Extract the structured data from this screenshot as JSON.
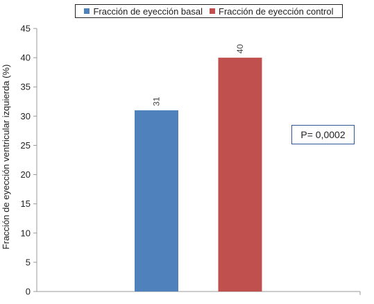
{
  "chart_data": {
    "type": "bar",
    "categories": [
      "Fracción de eyección basal",
      "Fracción de eyección control"
    ],
    "values": [
      31,
      40
    ],
    "data_labels": [
      "31",
      "40"
    ],
    "colors": [
      "#4f81bd",
      "#c0504d"
    ],
    "ylabel": "Fracción de eyección ventricular izquierda (%)",
    "ylim": [
      0,
      45
    ],
    "yticks": [
      0,
      5,
      10,
      15,
      20,
      25,
      30,
      35,
      40,
      45
    ],
    "ytick_labels": [
      "0",
      "5",
      "10",
      "15",
      "20",
      "25",
      "30",
      "35",
      "40",
      "45"
    ],
    "legend_position": "top",
    "grid": false
  },
  "legend": {
    "items": [
      {
        "label": "Fracción de eyección basal",
        "color": "#4f81bd"
      },
      {
        "label": "Fracción de eyección control",
        "color": "#c0504d"
      }
    ]
  },
  "annotation": {
    "text": "P= 0,0002"
  }
}
